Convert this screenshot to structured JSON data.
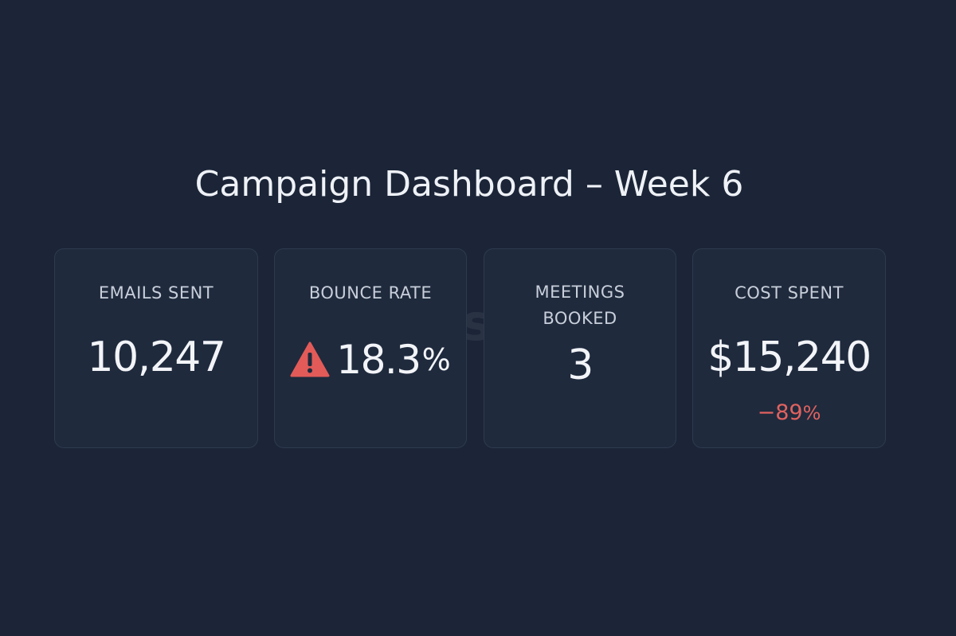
{
  "page": {
    "title": "Campaign Dashboard – Week 6",
    "watermark": "SalesGhost"
  },
  "cards": [
    {
      "label": "EMAILS SENT",
      "value": "10,247"
    },
    {
      "label": "BOUNCE RATE",
      "value": "18.3",
      "unit": "%",
      "icon": "warning-icon",
      "icon_color": "#e25b58"
    },
    {
      "label_line1": "MEETINGS",
      "label_line2": "BOOKED",
      "value": "3"
    },
    {
      "label": "COST SPENT",
      "value": "$15,240",
      "delta": "−89",
      "delta_unit": "%",
      "delta_color": "#e0625f"
    }
  ],
  "colors": {
    "background": "#1b2537",
    "card_background": "#1f2a3d",
    "card_border": "#2e3a4e",
    "text_primary": "#f2f4f8",
    "text_label": "#c8cfda",
    "alert": "#e25b58"
  }
}
